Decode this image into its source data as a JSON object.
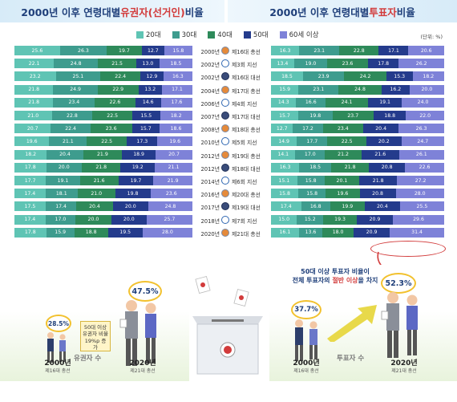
{
  "titles": {
    "left_pre": "2000년 이후 연령대별 ",
    "left_hl": "유권자(선거인)",
    "left_post": " 비율",
    "right_pre": "2000년 이후 연령대별 ",
    "right_hl": "투표자",
    "right_post": " 비율"
  },
  "unit_label": "(단위: %)",
  "colors": {
    "20s": "#5fc4b4",
    "30s": "#3e9c8e",
    "40s": "#2e8a5a",
    "50s": "#243b8c",
    "60plus": "#7e82d8",
    "accent_red": "#d23b3b",
    "title_blue": "#1f3f7a"
  },
  "chart_data": [
    {
      "type": "bar",
      "orientation": "horizontal",
      "stacked": true,
      "title": "2000년 이후 연령대별 유권자(선거인) 비율",
      "legend": [
        "20대",
        "30대",
        "40대",
        "50대",
        "60세 이상"
      ],
      "categories": [
        "2000년",
        "2002년",
        "2002년",
        "2004년",
        "2006년",
        "2007년",
        "2008년",
        "2010년",
        "2012년",
        "2012년",
        "2014년",
        "2016년",
        "2017년",
        "2018년",
        "2020년"
      ],
      "series": [
        {
          "name": "20대",
          "values": [
            25.6,
            22.1,
            23.2,
            21.8,
            21.8,
            21.0,
            20.7,
            19.6,
            18.2,
            17.8,
            17.7,
            17.4,
            17.5,
            17.4,
            17.8
          ]
        },
        {
          "name": "30대",
          "values": [
            26.3,
            24.8,
            25.1,
            24.9,
            23.4,
            22.8,
            22.4,
            21.1,
            20.4,
            20.0,
            19.1,
            18.1,
            17.4,
            17.0,
            15.9
          ]
        },
        {
          "name": "40대",
          "values": [
            19.7,
            21.5,
            22.4,
            22.9,
            22.6,
            22.5,
            23.6,
            22.5,
            21.9,
            21.8,
            21.6,
            21.0,
            20.4,
            20.0,
            18.8
          ]
        },
        {
          "name": "50대",
          "values": [
            12.7,
            13.0,
            12.9,
            13.2,
            14.6,
            15.5,
            15.7,
            17.3,
            18.9,
            19.2,
            19.7,
            19.8,
            20.0,
            20.0,
            19.5
          ]
        },
        {
          "name": "60세 이상",
          "values": [
            15.8,
            18.5,
            16.3,
            17.1,
            17.6,
            18.2,
            18.6,
            19.6,
            20.7,
            21.1,
            21.9,
            23.6,
            24.8,
            25.7,
            28.0
          ]
        }
      ]
    },
    {
      "type": "bar",
      "orientation": "horizontal",
      "stacked": true,
      "title": "2000년 이후 연령대별 투표자 비율",
      "legend": [
        "20대",
        "30대",
        "40대",
        "50대",
        "60세 이상"
      ],
      "categories": [
        "제16대 총선",
        "제3회 지선",
        "제16대 대선",
        "제17대 총선",
        "제4회 지선",
        "제17대 대선",
        "제18대 총선",
        "제5회 지선",
        "제19대 총선",
        "제18대 대선",
        "제6회 지선",
        "제20대 총선",
        "제19대 대선",
        "제7회 지선",
        "제21대 총선"
      ],
      "series": [
        {
          "name": "20대",
          "values": [
            16.3,
            13.4,
            18.5,
            15.9,
            14.3,
            15.7,
            12.7,
            14.9,
            14.1,
            16.3,
            15.1,
            15.8,
            17.4,
            15.0,
            16.1
          ]
        },
        {
          "name": "30대",
          "values": [
            23.1,
            19.0,
            23.9,
            23.1,
            16.6,
            19.8,
            17.2,
            17.7,
            17.0,
            18.5,
            15.8,
            15.8,
            16.8,
            15.2,
            13.6
          ]
        },
        {
          "name": "40대",
          "values": [
            22.8,
            23.6,
            24.2,
            24.8,
            24.1,
            23.7,
            23.4,
            22.5,
            21.2,
            21.8,
            20.1,
            19.6,
            19.9,
            19.3,
            18.0
          ]
        },
        {
          "name": "50대",
          "values": [
            17.1,
            17.8,
            15.3,
            16.2,
            19.1,
            18.8,
            20.4,
            20.2,
            21.6,
            20.8,
            21.8,
            20.8,
            20.4,
            20.9,
            20.9
          ]
        },
        {
          "name": "60세 이상",
          "values": [
            20.6,
            26.2,
            18.2,
            20.0,
            24.0,
            22.0,
            26.3,
            24.7,
            26.1,
            22.6,
            27.2,
            28.0,
            25.5,
            29.6,
            31.4
          ]
        }
      ]
    }
  ],
  "rows": [
    {
      "year": "2000년",
      "election": "제16대 총선",
      "kind": "assembly"
    },
    {
      "year": "2002년",
      "election": "제3회 지선",
      "kind": "local"
    },
    {
      "year": "2002년",
      "election": "제16대 대선",
      "kind": "president"
    },
    {
      "year": "2004년",
      "election": "제17대 총선",
      "kind": "assembly"
    },
    {
      "year": "2006년",
      "election": "제4회 지선",
      "kind": "local"
    },
    {
      "year": "2007년",
      "election": "제17대 대선",
      "kind": "president"
    },
    {
      "year": "2008년",
      "election": "제18대 총선",
      "kind": "assembly"
    },
    {
      "year": "2010년",
      "election": "제5회 지선",
      "kind": "local"
    },
    {
      "year": "2012년",
      "election": "제19대 총선",
      "kind": "assembly"
    },
    {
      "year": "2012년",
      "election": "제18대 대선",
      "kind": "president"
    },
    {
      "year": "2014년",
      "election": "제6회 지선",
      "kind": "local"
    },
    {
      "year": "2016년",
      "election": "제20대 총선",
      "kind": "assembly"
    },
    {
      "year": "2017년",
      "election": "제19대 대선",
      "kind": "president"
    },
    {
      "year": "2018년",
      "election": "제7회 지선",
      "kind": "local"
    },
    {
      "year": "2020년",
      "election": "제21대 총선",
      "kind": "assembly"
    }
  ],
  "bottom_left": {
    "pct_2000": "28.5%",
    "pct_2020": "47.5%",
    "note": "50대 이상 유권자 비율 19%p 증가",
    "ground": "유권자 수",
    "year_2000": "2000년",
    "elec_2000": "제16대 총선",
    "year_2020": "2020년",
    "elec_2020": "제21대 총선"
  },
  "bottom_right": {
    "callout_line1": "50대 이상 투표자 비율이",
    "callout_pre": "전체 투표자의 ",
    "callout_hl": "절반 이상",
    "callout_post": "을 차지",
    "pct_2000": "37.7%",
    "pct_2020": "52.3%",
    "ground": "투표자 수",
    "year_2000": "2000년",
    "elec_2000": "제16대 총선",
    "year_2020": "2020년",
    "elec_2020": "제21대 총선"
  }
}
